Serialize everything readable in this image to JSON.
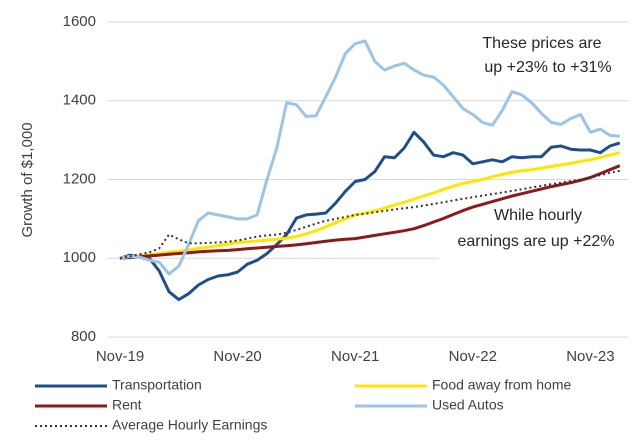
{
  "chart_data": {
    "type": "line",
    "y_label": "Growth of $1,000",
    "categories": [
      "Nov-19",
      null,
      null,
      null,
      null,
      null,
      null,
      null,
      null,
      null,
      null,
      null,
      "Nov-20",
      null,
      null,
      null,
      null,
      null,
      null,
      null,
      null,
      null,
      null,
      null,
      "Nov-21",
      null,
      null,
      null,
      null,
      null,
      null,
      null,
      null,
      null,
      null,
      null,
      "Nov-22",
      null,
      null,
      null,
      null,
      null,
      null,
      null,
      null,
      null,
      null,
      null,
      "Nov-23",
      null,
      null,
      null
    ],
    "ylim": [
      800,
      1600
    ],
    "yticks": [
      800,
      1000,
      1200,
      1400,
      1600
    ],
    "grid": true,
    "legend": "bottom",
    "annotations": [
      [
        "These prices are",
        "up +23% to +31%"
      ],
      [
        "While hourly",
        "earnings are up +22%"
      ]
    ],
    "series": [
      {
        "name": "Transportation",
        "color": "#1f4e8c",
        "dash": "solid",
        "values": [
          1000,
          1008,
          1003,
          1000,
          968,
          915,
          895,
          910,
          932,
          946,
          955,
          958,
          965,
          985,
          995,
          1012,
          1035,
          1060,
          1102,
          1110,
          1112,
          1115,
          1140,
          1170,
          1195,
          1200,
          1220,
          1258,
          1255,
          1280,
          1320,
          1295,
          1262,
          1258,
          1268,
          1262,
          1240,
          1245,
          1250,
          1245,
          1258,
          1255,
          1258,
          1258,
          1282,
          1285,
          1277,
          1275,
          1275,
          1268,
          1285,
          1293
        ]
      },
      {
        "name": "Food away from home",
        "color": "#ffe600",
        "dash": "solid",
        "values": [
          1000,
          1003,
          1006,
          1009,
          1012,
          1015,
          1018,
          1021,
          1025,
          1028,
          1032,
          1036,
          1040,
          1042,
          1044,
          1046,
          1048,
          1051,
          1055,
          1062,
          1070,
          1080,
          1090,
          1100,
          1110,
          1115,
          1120,
          1127,
          1135,
          1142,
          1150,
          1158,
          1166,
          1175,
          1183,
          1190,
          1195,
          1200,
          1207,
          1213,
          1218,
          1222,
          1225,
          1229,
          1233,
          1237,
          1241,
          1246,
          1250,
          1256,
          1262,
          1268
        ]
      },
      {
        "name": "Rent",
        "color": "#8b1a1a",
        "dash": "solid",
        "values": [
          1000,
          1002,
          1004,
          1006,
          1008,
          1010,
          1012,
          1014,
          1016,
          1018,
          1019,
          1020,
          1022,
          1024,
          1026,
          1028,
          1030,
          1032,
          1034,
          1037,
          1040,
          1043,
          1046,
          1048,
          1050,
          1054,
          1058,
          1062,
          1066,
          1070,
          1075,
          1083,
          1092,
          1101,
          1111,
          1121,
          1130,
          1137,
          1144,
          1151,
          1158,
          1164,
          1170,
          1176,
          1182,
          1187,
          1192,
          1198,
          1205,
          1215,
          1225,
          1235
        ]
      },
      {
        "name": "Used Autos",
        "color": "#9dc3e6",
        "dash": "solid",
        "values": [
          1000,
          1005,
          1003,
          995,
          990,
          960,
          980,
          1035,
          1095,
          1115,
          1110,
          1105,
          1100,
          1100,
          1110,
          1200,
          1280,
          1395,
          1390,
          1360,
          1362,
          1410,
          1460,
          1520,
          1545,
          1552,
          1500,
          1478,
          1488,
          1495,
          1478,
          1465,
          1460,
          1440,
          1410,
          1380,
          1365,
          1345,
          1338,
          1375,
          1423,
          1415,
          1395,
          1368,
          1345,
          1340,
          1355,
          1365,
          1320,
          1328,
          1312,
          1310
        ]
      },
      {
        "name": "Average Hourly Earnings",
        "color": "#333333",
        "dash": "dotted",
        "values": [
          1000,
          1005,
          1010,
          1015,
          1025,
          1060,
          1048,
          1038,
          1038,
          1039,
          1040,
          1042,
          1045,
          1050,
          1055,
          1058,
          1060,
          1065,
          1072,
          1080,
          1088,
          1095,
          1100,
          1105,
          1110,
          1113,
          1117,
          1120,
          1124,
          1127,
          1130,
          1134,
          1138,
          1142,
          1147,
          1151,
          1155,
          1159,
          1163,
          1167,
          1171,
          1175,
          1180,
          1184,
          1188,
          1192,
          1196,
          1200,
          1205,
          1211,
          1217,
          1222
        ]
      }
    ]
  }
}
